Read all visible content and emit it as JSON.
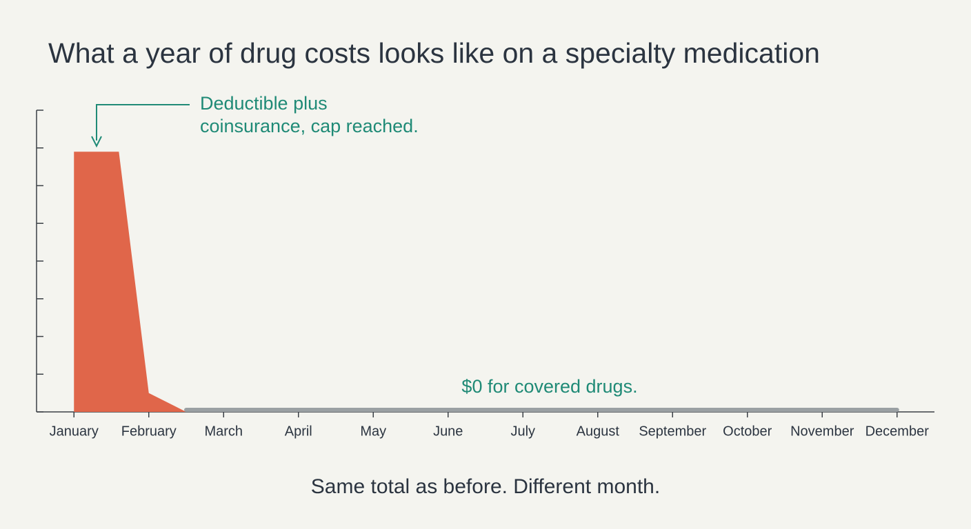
{
  "chart_data": {
    "type": "area",
    "title": "What a year of drug costs looks like on a specialty medication",
    "caption": "Same total as before. Different month.",
    "annotations": [
      {
        "text": [
          "Deductible plus",
          "coinsurance, cap reached."
        ],
        "color": "#1f8a76"
      },
      {
        "text": [
          "$0 for covered drugs."
        ],
        "color": "#1f8a76"
      }
    ],
    "xlim": [
      0.5,
      12.5
    ],
    "xticks": [
      {
        "value": 1,
        "label": "January"
      },
      {
        "value": 2,
        "label": "February"
      },
      {
        "value": 3,
        "label": "March"
      },
      {
        "value": 4,
        "label": "April"
      },
      {
        "value": 5,
        "label": "May"
      },
      {
        "value": 6,
        "label": "June"
      },
      {
        "value": 7,
        "label": "July"
      },
      {
        "value": 8,
        "label": "August"
      },
      {
        "value": 9,
        "label": "September"
      },
      {
        "value": 10,
        "label": "October"
      },
      {
        "value": 11,
        "label": "November"
      },
      {
        "value": 12,
        "label": "December"
      }
    ],
    "ylim": [
      0,
      8
    ],
    "yticks": [
      0,
      1,
      2,
      3,
      4,
      5,
      6,
      7,
      8
    ],
    "series": [
      {
        "type": "area",
        "color": "#e0664a",
        "x": [
          1,
          1.6,
          2,
          2.5
        ],
        "values": [
          6.9,
          6.9,
          0.5,
          0
        ]
      },
      {
        "type": "line",
        "color": "#9aa0a3",
        "x": [
          2.5,
          12
        ],
        "values": [
          0,
          0
        ]
      }
    ]
  }
}
